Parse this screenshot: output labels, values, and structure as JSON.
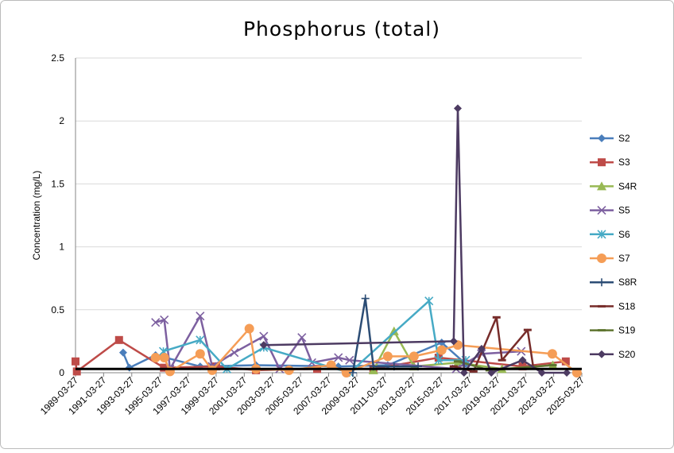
{
  "chart_data": {
    "type": "line",
    "title": "Phosphorus (total)",
    "ylabel": "Concentration (mg/L)",
    "xlim": [
      "1989-03-27",
      "2025-03-27"
    ],
    "xticks": [
      "1989-03-27",
      "1991-03-27",
      "1993-03-27",
      "1995-03-27",
      "1997-03-27",
      "1999-03-27",
      "2001-03-27",
      "2003-03-27",
      "2005-03-27",
      "2007-03-27",
      "2009-03-27",
      "2011-03-27",
      "2013-03-27",
      "2015-03-27",
      "2017-03-27",
      "2019-03-27",
      "2021-03-27",
      "2023-03-27",
      "2025-03-27"
    ],
    "ylim": [
      0,
      2.5
    ],
    "yticks": [
      0,
      0.5,
      1,
      1.5,
      2,
      2.5
    ],
    "grid": true,
    "legend": "right",
    "reference_line": {
      "value": 0.03,
      "color": "#000000"
    },
    "series": [
      {
        "name": "S2",
        "color": "#4a7ebb",
        "marker": "diamond",
        "x": [
          "1992-08-15",
          "1993-01-25",
          "1994-12-05",
          "1998-02-05",
          "2002-01-25",
          "2007-12-05",
          "2011-06-10",
          "2015-04-10",
          "2016-12-25"
        ],
        "values": [
          0.16,
          0.04,
          0.14,
          0.05,
          0.06,
          0.05,
          0.06,
          0.24,
          0.07
        ]
      },
      {
        "name": "S3",
        "color": "#be4b48",
        "marker": "square",
        "x": [
          "1989-03-27",
          "1989-05-01",
          "1992-05-01",
          "1995-07-10",
          "1999-03-27",
          "2002-01-25",
          "2006-06-01",
          "2010-06-01",
          "2015-01-20",
          "2021-01-10",
          "2024-02-05"
        ],
        "values": [
          0.09,
          0.01,
          0.26,
          0.04,
          0.05,
          0.02,
          0.03,
          0.03,
          0.12,
          0.05,
          0.09
        ]
      },
      {
        "name": "S4R",
        "color": "#98b954",
        "marker": "triangle",
        "x": [
          "2010-06-01",
          "2011-11-20",
          "2013-04-20",
          "2016-06-01",
          "2019-07-25",
          "2023-03-05"
        ],
        "values": [
          0.02,
          0.33,
          0.05,
          0.08,
          0.03,
          0.06
        ]
      },
      {
        "name": "S5",
        "color": "#7d60a0",
        "marker": "x",
        "x": [
          "1994-12-05",
          "1995-07-20",
          "1995-12-15",
          "1998-02-05",
          "1998-12-15",
          "2000-07-10",
          "2002-08-15",
          "2003-10-01",
          "2005-05-01",
          "2006-01-15",
          "2007-12-05",
          "2008-09-20",
          "2016-04-20",
          "2018-02-05",
          "2020-12-05"
        ],
        "values": [
          0.4,
          0.42,
          0.03,
          0.45,
          0.05,
          0.16,
          0.29,
          0.03,
          0.28,
          0.08,
          0.12,
          0.1,
          0.03,
          0.15,
          0.17
        ]
      },
      {
        "name": "S6",
        "color": "#46aac5",
        "marker": "asterisk",
        "x": [
          "1995-06-25",
          "1998-02-05",
          "2000-01-01",
          "2002-08-15",
          "2008-09-20",
          "2014-05-15",
          "2015-01-20",
          "2016-12-25"
        ],
        "values": [
          0.17,
          0.26,
          0.03,
          0.2,
          0.0,
          0.57,
          0.1,
          0.1
        ]
      },
      {
        "name": "S7",
        "color": "#f59d56",
        "marker": "circle",
        "x": [
          "1994-12-05",
          "1995-07-20",
          "1995-12-15",
          "1998-02-05",
          "1998-12-15",
          "2001-08-05",
          "2002-01-25",
          "2004-06-01",
          "2007-06-01",
          "2008-07-01",
          "2011-06-10",
          "2013-04-20",
          "2015-04-10",
          "2016-06-01",
          "2023-02-20",
          "2024-11-20"
        ],
        "values": [
          0.12,
          0.12,
          0.01,
          0.15,
          0.02,
          0.35,
          0.03,
          0.02,
          0.06,
          0.0,
          0.13,
          0.13,
          0.18,
          0.22,
          0.15,
          0.0
        ]
      },
      {
        "name": "S8R",
        "color": "#2c4d75",
        "marker": "plus",
        "x": [
          "2008-12-15",
          "2009-11-05",
          "2010-06-01",
          "2011-11-20",
          "2013-08-05"
        ],
        "values": [
          0.0,
          0.59,
          0.05,
          0.05,
          0.05
        ]
      },
      {
        "name": "S18",
        "color": "#772c2a",
        "marker": "dash",
        "x": [
          "2016-02-15",
          "2017-07-15",
          "2019-03-05",
          "2019-07-25",
          "2021-05-20",
          "2021-10-10"
        ],
        "values": [
          0.05,
          0.01,
          0.44,
          0.1,
          0.34,
          0.05
        ]
      },
      {
        "name": "S19",
        "color": "#5f7530",
        "marker": "dash",
        "x": [
          "2016-06-01",
          "2018-09-01",
          "2023-03-05"
        ],
        "values": [
          0.09,
          0.02,
          0.06
        ]
      },
      {
        "name": "S20",
        "color": "#4d3b62",
        "marker": "diamond",
        "x": [
          "2002-08-15",
          "2016-02-15",
          "2016-06-01",
          "2016-11-10",
          "2018-02-10",
          "2018-10-20",
          "2021-01-10",
          "2022-05-25",
          "2024-03-01"
        ],
        "values": [
          0.22,
          0.25,
          2.1,
          0.0,
          0.19,
          0.0,
          0.1,
          0.0,
          0.0
        ]
      }
    ]
  }
}
